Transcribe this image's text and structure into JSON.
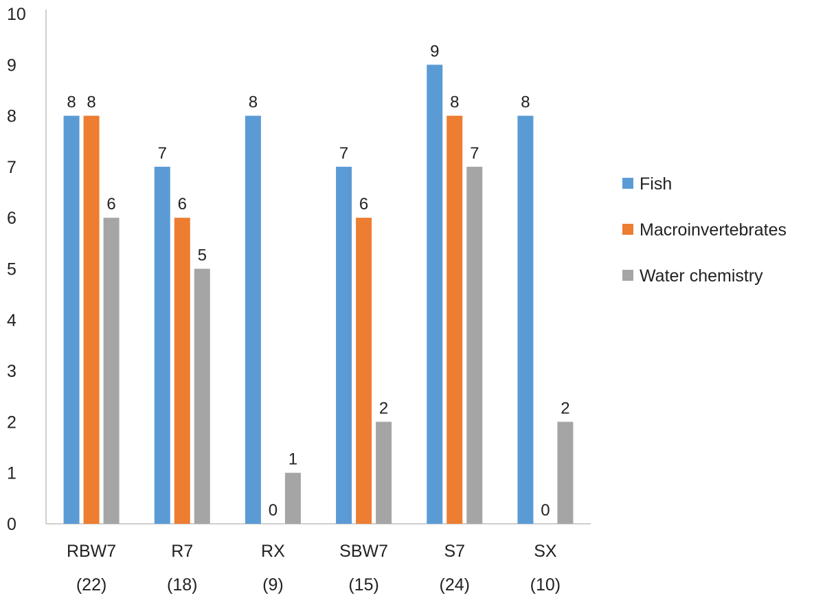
{
  "chart_data": {
    "type": "bar",
    "title": "",
    "xlabel": "",
    "ylabel": "",
    "ylim": [
      0,
      10
    ],
    "yticks": [
      0,
      1,
      2,
      3,
      4,
      5,
      6,
      7,
      8,
      9,
      10
    ],
    "grid": false,
    "legend_position": "right",
    "categories": [
      {
        "name": "RBW7",
        "count": "(22)"
      },
      {
        "name": "R7",
        "count": "(18)"
      },
      {
        "name": "RX",
        "count": "(9)"
      },
      {
        "name": "SBW7",
        "count": "(15)"
      },
      {
        "name": "S7",
        "count": "(24)"
      },
      {
        "name": "SX",
        "count": "(10)"
      }
    ],
    "series": [
      {
        "name": "Fish",
        "color": "#5B9BD5",
        "values": [
          8,
          7,
          8,
          7,
          9,
          8
        ]
      },
      {
        "name": "Macroinvertebrates",
        "color": "#ED7D31",
        "values": [
          8,
          6,
          0,
          6,
          8,
          0
        ]
      },
      {
        "name": "Water chemistry",
        "color": "#A5A5A5",
        "values": [
          6,
          5,
          1,
          2,
          7,
          2
        ]
      }
    ]
  }
}
